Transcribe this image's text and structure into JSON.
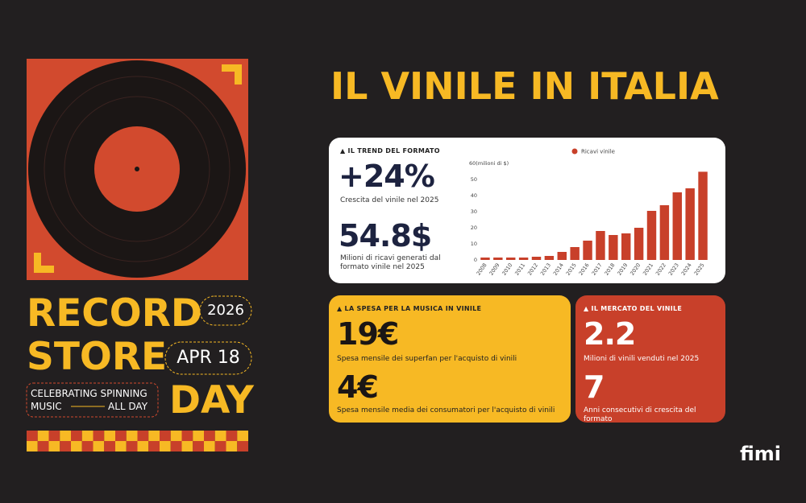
{
  "poster": {
    "record": "RECORD",
    "store": "STORE",
    "day": "DAY",
    "year": "2026",
    "date": "APR 18",
    "tagline_top": "CELEBRATING SPINNING",
    "tagline_left": "MUSIC",
    "tagline_right": "ALL DAY"
  },
  "title": "IL VINILE IN ITALIA",
  "trend": {
    "heading": "IL TREND DEL FORMATO",
    "stat1": "+24%",
    "desc1": "Crescita del vinile nel 2025",
    "stat2": "54.8$",
    "desc2": "Milioni di ricavi generati dal formato vinile nel 2025"
  },
  "chart_data": {
    "type": "bar",
    "categories": [
      "2008",
      "2009",
      "2010",
      "2011",
      "2012",
      "2013",
      "2014",
      "2015",
      "2016",
      "2017",
      "2018",
      "2019",
      "2020",
      "2021",
      "2022",
      "2023",
      "2024",
      "2025"
    ],
    "series": [
      {
        "name": "Ricavi vinile",
        "color": "#c8402a",
        "values": [
          1.5,
          1.5,
          1.5,
          1.5,
          2,
          2.5,
          5,
          8,
          12,
          18,
          15.5,
          16.5,
          20,
          30.5,
          34,
          42,
          44.5,
          54.8
        ]
      }
    ],
    "ylim": [
      0,
      60
    ],
    "yticks": [
      0,
      10,
      20,
      30,
      40,
      50,
      {
        "value": 60,
        "label": "60(milioni di $)"
      }
    ],
    "grid": false,
    "legend": "top"
  },
  "spesa": {
    "heading": "LA SPESA PER LA MUSICA IN VINILE",
    "stat1": "19€",
    "desc1": "Spesa mensile dei superfan per l'acquisto di vinili",
    "stat2": "4€",
    "desc2": "Spesa mensile media dei consumatori per l'acquisto di vinili"
  },
  "mercato": {
    "heading": "IL MERCATO DEL VINILE",
    "stat1": "2.2",
    "desc1": "Milioni di vinili venduti nel 2025",
    "stat2": "7",
    "desc2": "Anni consecutivi di crescita del formato"
  },
  "logo": "fimi"
}
